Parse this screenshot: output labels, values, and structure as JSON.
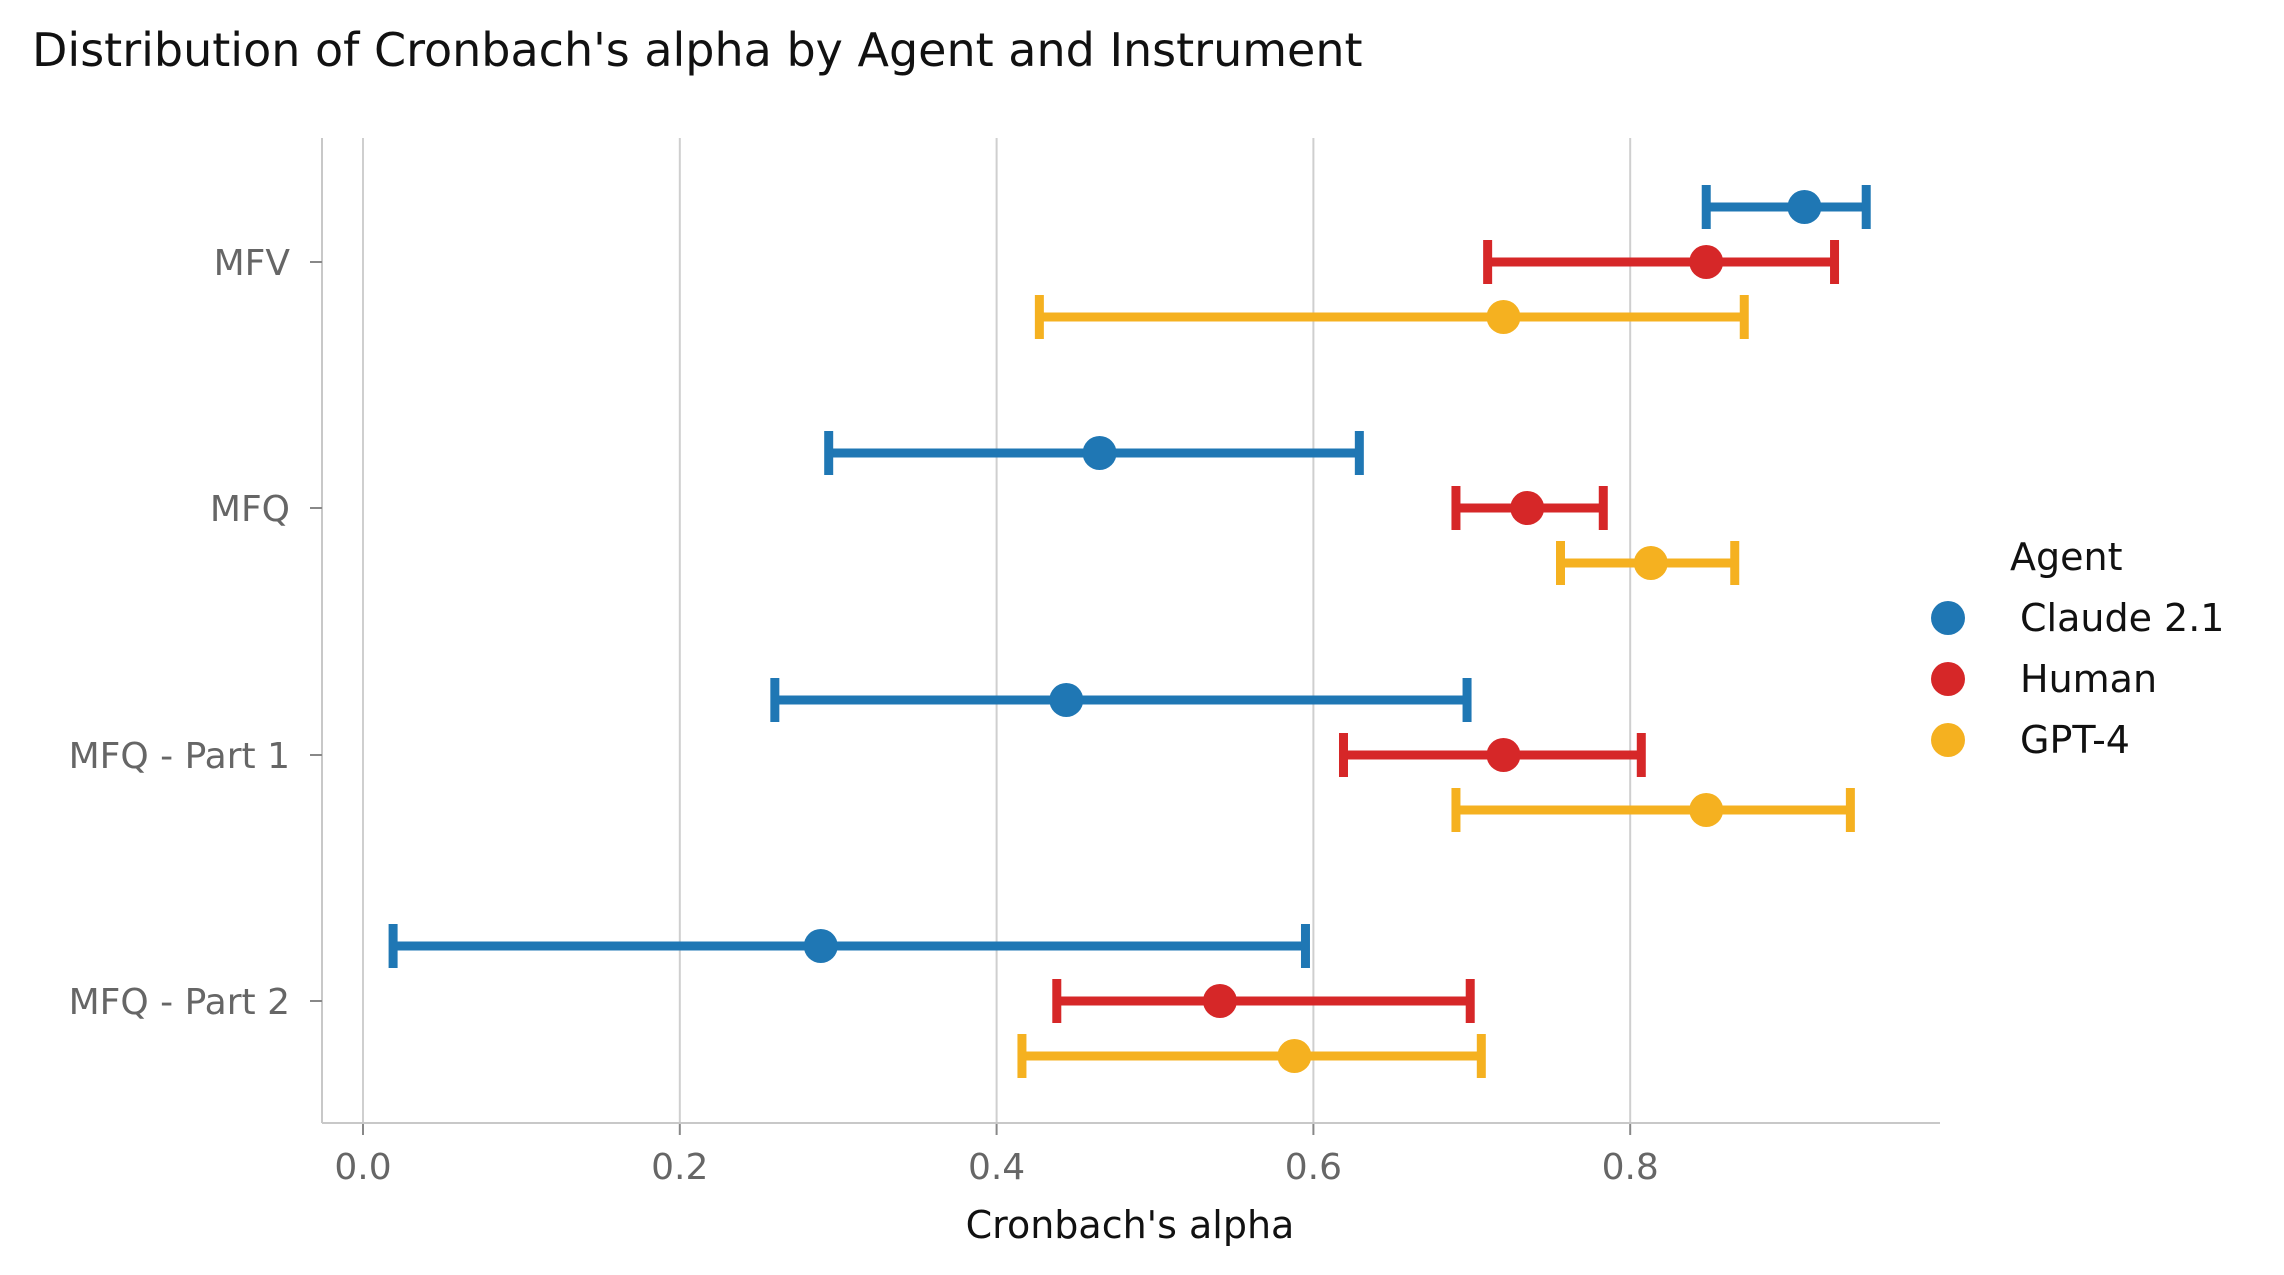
{
  "chart_data": {
    "type": "errorbar-dot",
    "title": "Distribution of Cronbach's alpha by Agent and Instrument",
    "xlabel": "Cronbach's alpha",
    "ylabel": "",
    "xlim": [
      -0.035,
      0.99
    ],
    "xticks": [
      "0.0",
      "0.2",
      "0.4",
      "0.6",
      "0.8"
    ],
    "grid": "vertical",
    "categories": [
      "MFV",
      "MFQ",
      "MFQ - Part 1",
      "MFQ - Part 2"
    ],
    "legend": {
      "title": "Agent",
      "placement": "right"
    },
    "series": [
      {
        "name": "Claude 2.1",
        "color": "#1f77b4",
        "points": [
          {
            "category": "MFV",
            "value": 0.91,
            "low": 0.848,
            "high": 0.949
          },
          {
            "category": "MFQ",
            "value": 0.465,
            "low": 0.294,
            "high": 0.629
          },
          {
            "category": "MFQ - Part 1",
            "value": 0.444,
            "low": 0.26,
            "high": 0.697
          },
          {
            "category": "MFQ - Part 2",
            "value": 0.289,
            "low": 0.019,
            "high": 0.595
          }
        ]
      },
      {
        "name": "Human",
        "color": "#d62728",
        "points": [
          {
            "category": "MFV",
            "value": 0.848,
            "low": 0.71,
            "high": 0.929
          },
          {
            "category": "MFQ",
            "value": 0.735,
            "low": 0.69,
            "high": 0.783
          },
          {
            "category": "MFQ - Part 1",
            "value": 0.72,
            "low": 0.619,
            "high": 0.807
          },
          {
            "category": "MFQ - Part 2",
            "value": 0.541,
            "low": 0.438,
            "high": 0.699
          }
        ]
      },
      {
        "name": "GPT-4",
        "color": "#f5b120",
        "points": [
          {
            "category": "MFV",
            "value": 0.72,
            "low": 0.427,
            "high": 0.872
          },
          {
            "category": "MFQ",
            "value": 0.813,
            "low": 0.756,
            "high": 0.866
          },
          {
            "category": "MFQ - Part 1",
            "value": 0.848,
            "low": 0.69,
            "high": 0.939
          },
          {
            "category": "MFQ - Part 2",
            "value": 0.588,
            "low": 0.416,
            "high": 0.706
          }
        ]
      }
    ]
  }
}
